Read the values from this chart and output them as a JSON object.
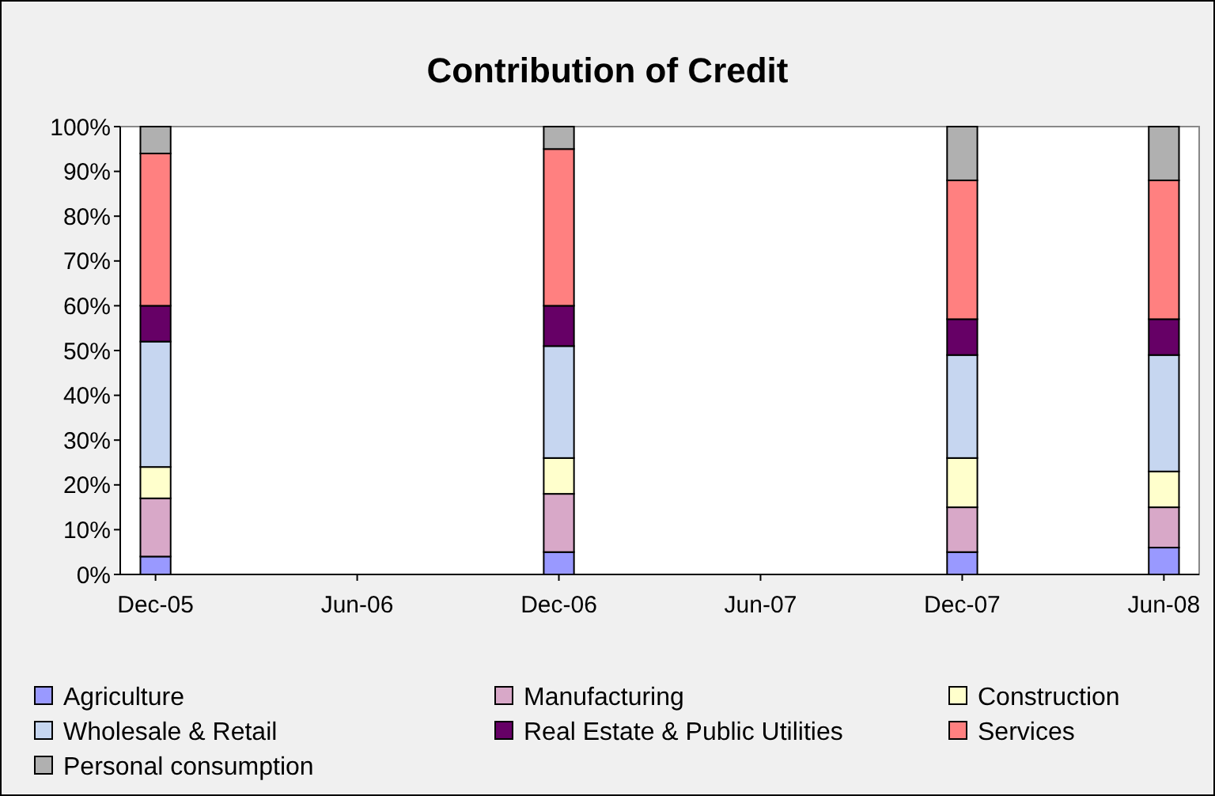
{
  "chart_data": {
    "type": "bar",
    "title": "Contribution of Credit",
    "stacked": true,
    "categories": [
      "Dec-05",
      "Jun-06",
      "Dec-06",
      "Jun-07",
      "Dec-07",
      "Jun-08"
    ],
    "series": [
      {
        "name": "Agriculture",
        "color": "#9999ff",
        "values": [
          4,
          null,
          5,
          null,
          5,
          6
        ]
      },
      {
        "name": "Manufacturing",
        "color": "#d8a8c8",
        "values": [
          13,
          null,
          13,
          null,
          10,
          9
        ]
      },
      {
        "name": "Construction",
        "color": "#ffffcc",
        "values": [
          7,
          null,
          8,
          null,
          11,
          8
        ]
      },
      {
        "name": "Wholesale & Retail",
        "color": "#c6d6f0",
        "values": [
          28,
          null,
          25,
          null,
          23,
          26
        ]
      },
      {
        "name": "Real Estate & Public Utilities",
        "color": "#660066",
        "values": [
          8,
          null,
          9,
          null,
          8,
          8
        ]
      },
      {
        "name": "Services",
        "color": "#ff8080",
        "values": [
          34,
          null,
          35,
          null,
          31,
          31
        ]
      },
      {
        "name": "Personal consumption",
        "color": "#b0b0b0",
        "values": [
          6,
          null,
          5,
          null,
          12,
          12
        ]
      }
    ],
    "ylim": [
      0,
      100
    ],
    "yticks": [
      {
        "value": 0,
        "label": "0%"
      },
      {
        "value": 10,
        "label": "10%"
      },
      {
        "value": 20,
        "label": "20%"
      },
      {
        "value": 30,
        "label": "30%"
      },
      {
        "value": 40,
        "label": "40%"
      },
      {
        "value": 50,
        "label": "50%"
      },
      {
        "value": 60,
        "label": "60%"
      },
      {
        "value": 70,
        "label": "70%"
      },
      {
        "value": 80,
        "label": "80%"
      },
      {
        "value": 90,
        "label": "90%"
      },
      {
        "value": 100,
        "label": "100%"
      }
    ],
    "grid": false,
    "legend": "bottom"
  }
}
